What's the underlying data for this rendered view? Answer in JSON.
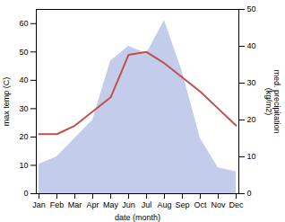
{
  "chart_data": {
    "type": "line",
    "xlabel": "date (month)",
    "ylabel": "max temp (C)",
    "y2label": "med. precipitation\n(kg/m2)",
    "categories": [
      "Jan",
      "Feb",
      "Mar",
      "Apr",
      "May",
      "Jun",
      "Jul",
      "Aug",
      "Sep",
      "Oct",
      "Nov",
      "Dec"
    ],
    "series": [
      {
        "type": "area",
        "color": "#b8c4e8",
        "axis": "y2",
        "values": [
          8,
          10,
          15,
          20,
          36,
          40,
          38,
          47,
          33,
          15,
          7,
          6
        ]
      },
      {
        "type": "line",
        "color": "#c0504d",
        "values": [
          21,
          21,
          24,
          29,
          34,
          49,
          50,
          46,
          41,
          36,
          30,
          24
        ]
      }
    ],
    "ylim": [
      0,
      65
    ],
    "yticks": [
      0,
      10,
      20,
      30,
      40,
      50,
      60
    ],
    "y2lim": [
      0,
      50
    ],
    "y2ticks": [
      0,
      10,
      20,
      30,
      40,
      50
    ]
  }
}
